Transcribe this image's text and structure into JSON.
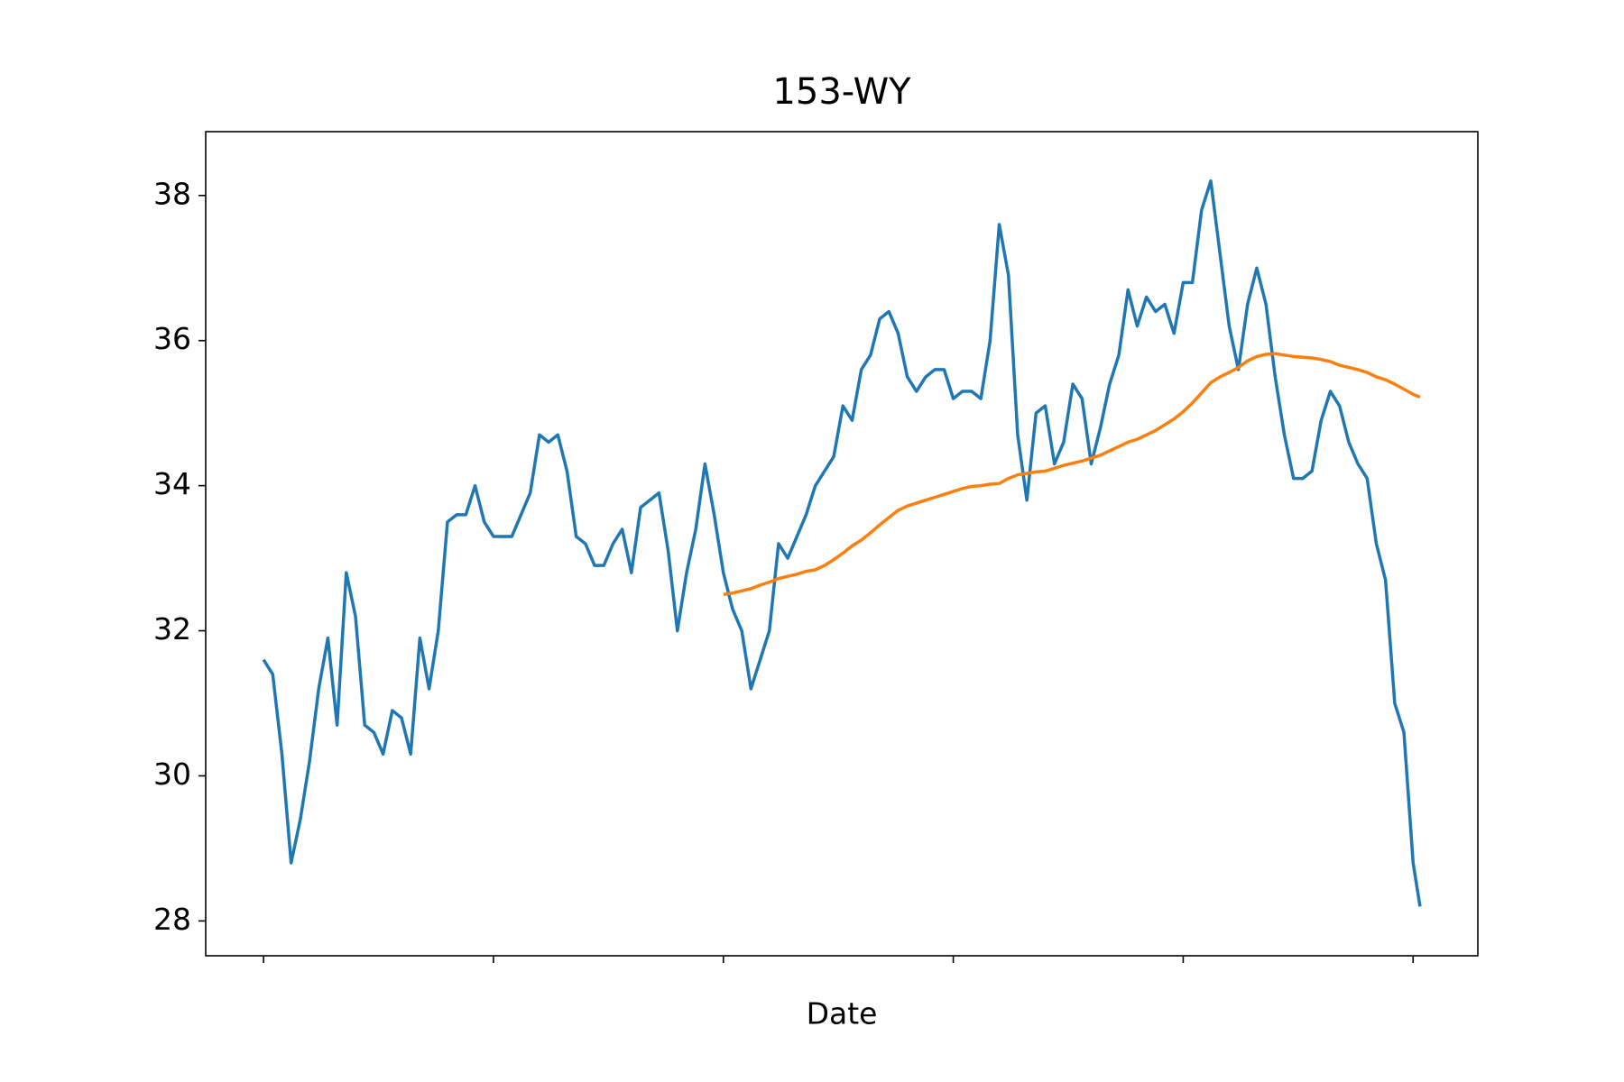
{
  "chart_data": {
    "type": "line",
    "title": "153-WY",
    "xlabel": "Date",
    "x": [
      0,
      4,
      8,
      12,
      16,
      20,
      24,
      28,
      32,
      36,
      40,
      44,
      48,
      52,
      56,
      60,
      64,
      68,
      72,
      76,
      80,
      84,
      88,
      92,
      96,
      100,
      104,
      108,
      112,
      116,
      120,
      124,
      128,
      132,
      136,
      140,
      144,
      148,
      152,
      156,
      160,
      164,
      168,
      172,
      176,
      180,
      184,
      188,
      192,
      196,
      200,
      204,
      208,
      212,
      216,
      220,
      224,
      228,
      232,
      236,
      240,
      244,
      248,
      252,
      256,
      260,
      264,
      268,
      272,
      276,
      280,
      284,
      288,
      292,
      296,
      300,
      304,
      308,
      312,
      316,
      320,
      324,
      328,
      332,
      336,
      340,
      344,
      348,
      352,
      356,
      360,
      364,
      368,
      372,
      376,
      380,
      384,
      388,
      392,
      396,
      400,
      404,
      408,
      412,
      416,
      420,
      424,
      428,
      432,
      436,
      440,
      444,
      448,
      452,
      456,
      460,
      464,
      468,
      472,
      476,
      480,
      484,
      488,
      492,
      496,
      500,
      503
    ],
    "series": [
      {
        "color": "#1f77b4",
        "values": [
          31.6,
          31.4,
          30.3,
          28.8,
          29.4,
          30.2,
          31.2,
          31.9,
          30.7,
          32.8,
          32.2,
          30.7,
          30.6,
          30.3,
          30.9,
          30.8,
          30.3,
          31.9,
          31.2,
          32.0,
          33.5,
          33.6,
          33.6,
          34.0,
          33.5,
          33.3,
          33.3,
          33.3,
          33.6,
          33.9,
          34.7,
          34.6,
          34.7,
          34.2,
          33.3,
          33.2,
          32.9,
          32.9,
          33.2,
          33.4,
          32.8,
          33.7,
          33.8,
          33.9,
          33.1,
          32.0,
          32.8,
          33.4,
          34.3,
          33.6,
          32.8,
          32.3,
          32.0,
          31.2,
          31.6,
          32.0,
          33.2,
          33.0,
          33.3,
          33.6,
          34.0,
          34.2,
          34.4,
          35.1,
          34.9,
          35.6,
          35.8,
          36.3,
          36.4,
          36.1,
          35.5,
          35.3,
          35.5,
          35.6,
          35.6,
          35.2,
          35.3,
          35.3,
          35.2,
          36.0,
          37.6,
          36.9,
          34.7,
          33.8,
          35.0,
          35.1,
          34.3,
          34.6,
          35.4,
          35.2,
          34.3,
          34.8,
          35.4,
          35.8,
          36.7,
          36.2,
          36.6,
          36.4,
          36.5,
          36.1,
          36.8,
          36.8,
          37.8,
          38.2,
          37.2,
          36.2,
          35.6,
          36.5,
          37.0,
          36.5,
          35.5,
          34.7,
          34.1,
          34.1,
          34.2,
          34.9,
          35.3,
          35.1,
          34.6,
          34.3,
          34.1,
          33.2,
          32.7,
          31.0,
          30.6,
          28.8,
          28.2
        ]
      },
      {
        "color": "#ff7f0e",
        "values": [
          null,
          null,
          null,
          null,
          null,
          null,
          null,
          null,
          null,
          null,
          null,
          null,
          null,
          null,
          null,
          null,
          null,
          null,
          null,
          null,
          null,
          null,
          null,
          null,
          null,
          null,
          null,
          null,
          null,
          null,
          null,
          null,
          null,
          null,
          null,
          null,
          null,
          null,
          null,
          null,
          null,
          null,
          null,
          null,
          null,
          null,
          null,
          null,
          null,
          null,
          32.5,
          32.52,
          32.55,
          32.58,
          32.63,
          32.67,
          32.72,
          32.75,
          32.78,
          32.82,
          32.84,
          32.9,
          32.98,
          33.07,
          33.17,
          33.25,
          33.35,
          33.46,
          33.56,
          33.66,
          33.72,
          33.76,
          33.8,
          33.84,
          33.88,
          33.92,
          33.96,
          33.99,
          34.0,
          34.02,
          34.03,
          34.1,
          34.15,
          34.17,
          34.19,
          34.2,
          34.24,
          34.28,
          34.31,
          34.34,
          34.38,
          34.42,
          34.48,
          34.54,
          34.6,
          34.64,
          34.7,
          34.76,
          34.84,
          34.92,
          35.02,
          35.14,
          35.28,
          35.42,
          35.5,
          35.56,
          35.63,
          35.72,
          35.78,
          35.81,
          35.82,
          35.8,
          35.78,
          35.77,
          35.76,
          35.74,
          35.71,
          35.66,
          35.63,
          35.6,
          35.56,
          35.5,
          35.46,
          35.4,
          35.33,
          35.26,
          35.22
        ]
      }
    ],
    "xlim": [
      -25.15,
      528.15
    ],
    "xticks": [
      0,
      100,
      200,
      300,
      400,
      500
    ],
    "xtick_labels": false,
    "ylim": [
      27.52,
      38.88
    ],
    "yticks": [
      28,
      30,
      32,
      34,
      36,
      38
    ],
    "grid": false
  }
}
